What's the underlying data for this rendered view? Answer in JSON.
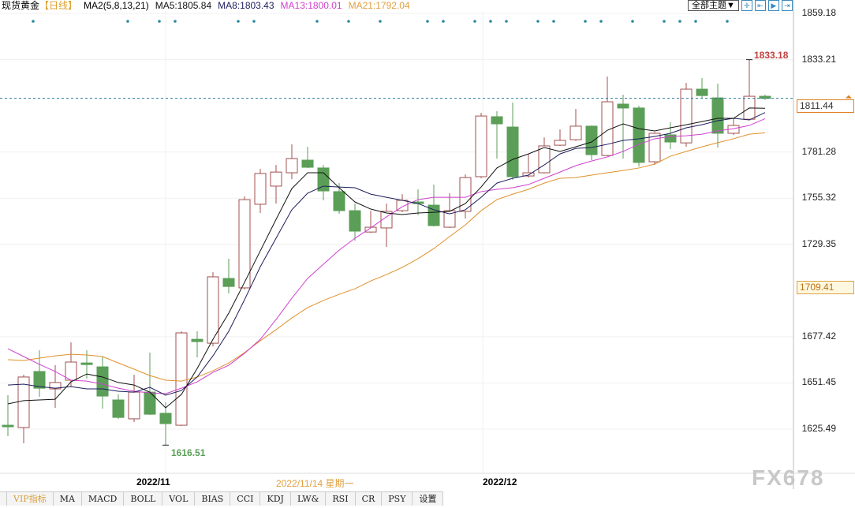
{
  "header": {
    "instrument": "现货黄金",
    "period": "【日线】",
    "indicator": "MA2(5,8,13,21)",
    "ma5": "MA5:1805.84",
    "ma8": "MA8:1803.43",
    "ma13": "MA13:1800.01",
    "ma21": "MA21:1792.04"
  },
  "toolbar": {
    "theme_button": "全部主题▼",
    "icons": [
      "crosshair-icon",
      "zoom-range-icon",
      "play-icon",
      "end-icon"
    ]
  },
  "price_axis": {
    "labels": [
      "1859.18",
      "1833.21",
      "1781.28",
      "1755.32",
      "1729.35",
      "1677.42",
      "1651.45",
      "1625.49"
    ],
    "current_price": "1811.44",
    "marker_price": "1709.41"
  },
  "annotations": {
    "high": "1833.18",
    "low": "1616.51"
  },
  "date_axis": {
    "month1": "2022/11",
    "cursor_date": "2022/11/14 星期一",
    "month2": "2022/12"
  },
  "tabs": [
    "VIP指标",
    "MA",
    "MACD",
    "BOLL",
    "VOL",
    "BIAS",
    "CCI",
    "KDJ",
    "LW&",
    "RSI",
    "CR",
    "PSY",
    "设置"
  ],
  "watermark": "FX678",
  "colors": {
    "up": "#a0504f",
    "down": "#5b9e57",
    "ma5": "#111111",
    "ma8": "#1c1c5c",
    "ma13": "#d040d0",
    "ma21": "#e0902a",
    "current_line": "#2a7a9a"
  },
  "chart_data": {
    "type": "candlestick",
    "ylim": [
      1600,
      1866
    ],
    "candles": [
      [
        1627.7,
        1626.8,
        1644.6,
        1621.5
      ],
      [
        1626.4,
        1654.8,
        1656.1,
        1617.5
      ],
      [
        1657.9,
        1648.5,
        1669.8,
        1643.7
      ],
      [
        1648.1,
        1651.7,
        1661.4,
        1637.5
      ],
      [
        1653.0,
        1663.2,
        1674.3,
        1649.4
      ],
      [
        1662.7,
        1661.8,
        1669.8,
        1653.9
      ],
      [
        1660.5,
        1644.1,
        1666.3,
        1637.0
      ],
      [
        1641.9,
        1632.1,
        1645.0,
        1631.3
      ],
      [
        1631.3,
        1646.3,
        1656.1,
        1629.5
      ],
      [
        1646.3,
        1633.9,
        1668.5,
        1633.5
      ],
      [
        1634.4,
        1628.6,
        1640.6,
        1616.51
      ],
      [
        1627.7,
        1679.6,
        1680.5,
        1627.3
      ],
      [
        1676.0,
        1674.7,
        1680.5,
        1665.8
      ],
      [
        1673.8,
        1711.1,
        1713.7,
        1672.0
      ],
      [
        1710.2,
        1705.7,
        1721.3,
        1701.8
      ],
      [
        1704.9,
        1754.5,
        1756.3,
        1704.0
      ],
      [
        1751.9,
        1769.2,
        1771.8,
        1747.0
      ],
      [
        1762.1,
        1770.0,
        1774.0,
        1752.3
      ],
      [
        1769.6,
        1777.6,
        1785.6,
        1766.0
      ],
      [
        1776.7,
        1772.7,
        1784.2,
        1772.3
      ],
      [
        1772.3,
        1759.4,
        1774.0,
        1754.1
      ],
      [
        1759.0,
        1748.3,
        1763.8,
        1746.5
      ],
      [
        1748.3,
        1736.8,
        1752.3,
        1731.5
      ],
      [
        1736.3,
        1739.0,
        1748.3,
        1735.8
      ],
      [
        1738.6,
        1747.9,
        1752.3,
        1727.9
      ],
      [
        1748.3,
        1754.1,
        1757.6,
        1747.5
      ],
      [
        1753.2,
        1752.3,
        1760.3,
        1745.7
      ],
      [
        1751.4,
        1739.9,
        1762.9,
        1739.4
      ],
      [
        1739.0,
        1748.3,
        1758.1,
        1738.5
      ],
      [
        1747.9,
        1766.9,
        1768.7,
        1743.9
      ],
      [
        1767.4,
        1801.5,
        1803.3,
        1766.5
      ],
      [
        1801.1,
        1797.1,
        1804.2,
        1777.6
      ],
      [
        1795.3,
        1767.4,
        1809.1,
        1765.6
      ],
      [
        1767.8,
        1769.6,
        1780.2,
        1766.9
      ],
      [
        1769.6,
        1784.7,
        1789.5,
        1769.2
      ],
      [
        1785.1,
        1787.8,
        1794.0,
        1784.7
      ],
      [
        1788.2,
        1795.8,
        1805.5,
        1787.5
      ],
      [
        1795.8,
        1779.8,
        1796.2,
        1776.7
      ],
      [
        1779.3,
        1809.5,
        1823.7,
        1778.9
      ],
      [
        1808.2,
        1806.0,
        1813.5,
        1777.6
      ],
      [
        1806.0,
        1775.4,
        1807.3,
        1773.1
      ],
      [
        1775.8,
        1791.8,
        1792.5,
        1774.0
      ],
      [
        1790.9,
        1786.9,
        1798.0,
        1782.9
      ],
      [
        1786.4,
        1816.6,
        1820.1,
        1784.2
      ],
      [
        1816.6,
        1813.0,
        1822.8,
        1811.3
      ],
      [
        1811.7,
        1791.8,
        1819.7,
        1783.8
      ],
      [
        1791.8,
        1796.2,
        1800.2,
        1790.9
      ],
      [
        1799.7,
        1812.6,
        1833.18,
        1799.0
      ],
      [
        1812.6,
        1811.44,
        1813.5,
        1810.5
      ]
    ],
    "candle_fields": [
      "open",
      "close",
      "high",
      "low"
    ],
    "ma": {
      "MA5": [
        1639.7,
        1641.5,
        1641.9,
        1642.3,
        1652.1,
        1656.5,
        1654.8,
        1651.7,
        1650.3,
        1646.3,
        1637.5,
        1645.0,
        1659.6,
        1676.0,
        1690.7,
        1708.0,
        1725.7,
        1743.4,
        1760.7,
        1769.6,
        1769.6,
        1761.2,
        1753.2,
        1749.2,
        1747.0,
        1746.1,
        1747.0,
        1747.4,
        1747.9,
        1752.3,
        1761.6,
        1772.3,
        1777.1,
        1780.2,
        1783.8,
        1781.6,
        1784.2,
        1786.9,
        1793.5,
        1797.1,
        1794.4,
        1793.1,
        1794.9,
        1796.6,
        1798.4,
        1800.2,
        1800.2,
        1806.0,
        1805.84
      ],
      "MA8": [
        1650.3,
        1650.8,
        1649.4,
        1648.5,
        1649.4,
        1648.1,
        1648.1,
        1646.8,
        1646.3,
        1649.0,
        1644.6,
        1647.2,
        1654.8,
        1666.7,
        1680.5,
        1698.2,
        1716.8,
        1732.8,
        1748.8,
        1758.1,
        1762.1,
        1761.6,
        1761.2,
        1757.6,
        1755.8,
        1754.1,
        1752.3,
        1748.8,
        1746.5,
        1748.8,
        1755.8,
        1763.8,
        1766.5,
        1768.3,
        1774.0,
        1780.2,
        1783.3,
        1783.8,
        1785.6,
        1787.8,
        1788.7,
        1790.0,
        1791.8,
        1794.9,
        1796.6,
        1798.9,
        1800.2,
        1799.3,
        1803.43
      ],
      "MA13": [
        1670.7,
        1666.3,
        1661.9,
        1657.9,
        1653.0,
        1652.5,
        1650.8,
        1648.5,
        1646.8,
        1645.9,
        1645.4,
        1648.5,
        1652.1,
        1657.4,
        1661.4,
        1668.1,
        1676.0,
        1687.1,
        1699.1,
        1710.2,
        1718.2,
        1726.1,
        1732.8,
        1738.6,
        1744.8,
        1750.5,
        1754.5,
        1755.8,
        1755.8,
        1755.8,
        1759.0,
        1760.3,
        1761.2,
        1763.0,
        1766.5,
        1770.0,
        1773.6,
        1776.2,
        1778.5,
        1781.6,
        1785.6,
        1788.7,
        1790.0,
        1790.4,
        1791.3,
        1793.1,
        1794.4,
        1796.2,
        1800.01
      ],
      "MA21": [
        1664.5,
        1664.1,
        1665.4,
        1666.7,
        1667.6,
        1667.2,
        1666.3,
        1662.7,
        1659.2,
        1655.6,
        1653.0,
        1652.5,
        1654.8,
        1658.3,
        1662.7,
        1668.5,
        1675.2,
        1681.4,
        1688.0,
        1693.8,
        1697.8,
        1701.3,
        1704.4,
        1708.8,
        1712.4,
        1716.4,
        1721.3,
        1727.0,
        1733.7,
        1740.3,
        1748.3,
        1754.5,
        1757.6,
        1760.3,
        1763.8,
        1766.5,
        1766.9,
        1768.3,
        1769.6,
        1770.9,
        1772.3,
        1774.5,
        1778.9,
        1781.6,
        1784.2,
        1786.5,
        1788.7,
        1791.3,
        1792.04
      ]
    },
    "event_marker_candles": [
      1,
      7,
      9,
      10,
      14,
      15,
      19,
      21,
      23,
      26,
      27,
      29,
      30,
      31,
      33,
      34,
      36,
      37,
      39,
      41,
      42,
      43,
      45
    ],
    "grid": true
  }
}
